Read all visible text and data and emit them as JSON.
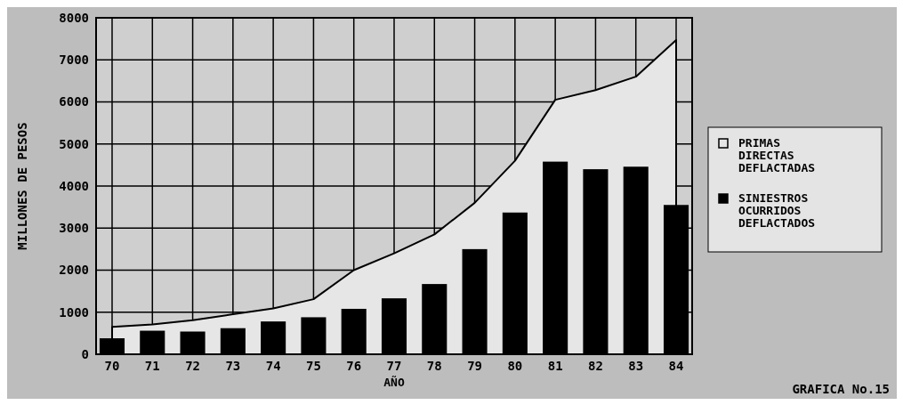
{
  "chart_data": {
    "type": "bar",
    "xlabel": "AÑO",
    "ylabel": "MILLONES DE PESOS",
    "categories": [
      "70",
      "71",
      "72",
      "73",
      "74",
      "75",
      "76",
      "77",
      "78",
      "79",
      "80",
      "81",
      "82",
      "83",
      "84"
    ],
    "series": [
      {
        "name": "PRIMAS DIRECTAS DEFLACTADAS",
        "type": "area",
        "color": "#e6e6e6",
        "values": [
          650,
          710,
          810,
          950,
          1090,
          1310,
          2000,
          2400,
          2850,
          3600,
          4600,
          6050,
          6280,
          6600,
          7470
        ]
      },
      {
        "name": "SINIESTROS OCURRIDOS DEFLACTADOS",
        "color": "#000000",
        "values": [
          380,
          560,
          540,
          620,
          780,
          880,
          1080,
          1330,
          1670,
          2500,
          3370,
          4580,
          4400,
          4460,
          3550
        ]
      }
    ],
    "ylim": [
      0,
      8000
    ],
    "yticks": [
      0,
      1000,
      2000,
      3000,
      4000,
      5000,
      6000,
      7000,
      8000
    ],
    "grid": true,
    "legend": "right",
    "annotations": [
      "GRAFICA No.15"
    ]
  }
}
